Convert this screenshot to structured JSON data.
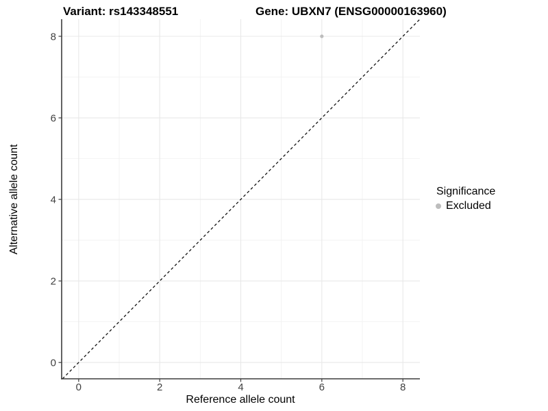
{
  "titles": {
    "variant": "Variant: rs143348551",
    "gene": "Gene: UBXN7 (ENSG00000163960)"
  },
  "axes": {
    "x_label": "Reference allele count",
    "y_label": "Alternative allele count"
  },
  "legend": {
    "title": "Significance",
    "items": [
      {
        "label": "Excluded",
        "color": "#bdbdbd"
      }
    ]
  },
  "colors": {
    "point": "#bdbdbd",
    "grid_major": "#e8e8e8",
    "grid_minor": "#f2f2f2",
    "axis_line": "#3c3c3c",
    "tick_mark": "#3c3c3c",
    "tick_label": "#404040",
    "reference_line": "#111111",
    "background": "#ffffff"
  },
  "chart_data": {
    "type": "scatter",
    "title": "Variant: rs143348551    Gene: UBXN7 (ENSG00000163960)",
    "xlabel": "Reference allele count",
    "ylabel": "Alternative allele count",
    "x_ticks": [
      0,
      2,
      4,
      6,
      8
    ],
    "y_ticks": [
      0,
      2,
      4,
      6,
      8
    ],
    "xlim": [
      -0.42,
      8.42
    ],
    "ylim": [
      -0.4,
      8.42
    ],
    "grid": "major+minor",
    "legend_position": "right",
    "legend_title": "Significance",
    "series": [
      {
        "name": "Excluded",
        "color": "#bdbdbd",
        "points": [
          {
            "x": 6,
            "y": 8
          }
        ]
      }
    ],
    "reference_line": {
      "type": "identity",
      "slope": 1,
      "intercept": 0,
      "style": "dashed",
      "color": "#111111"
    }
  }
}
